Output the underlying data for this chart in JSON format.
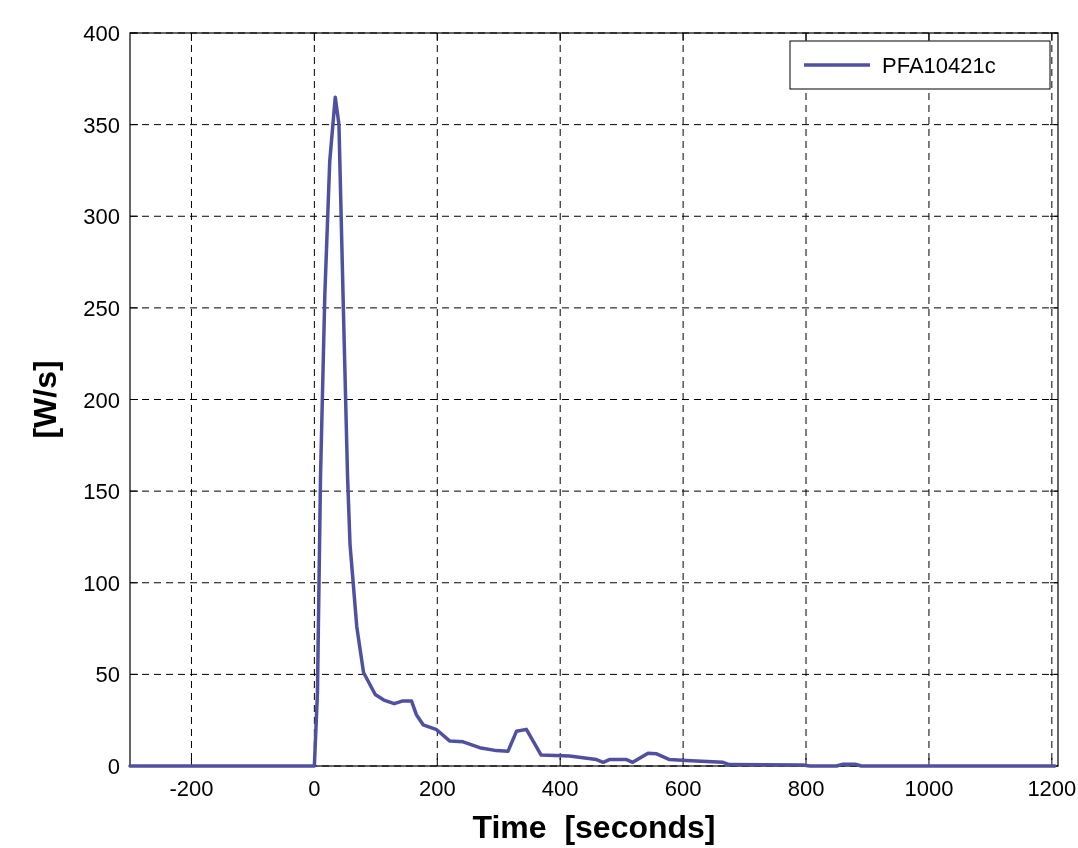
{
  "chart_data": {
    "type": "line",
    "xlabel": "Time  [seconds]",
    "ylabel": "[W/s]",
    "xlim": [
      -300,
      1210
    ],
    "xticks": [
      -200,
      0,
      200,
      400,
      600,
      800,
      1000,
      1200
    ],
    "ylim": [
      0,
      400
    ],
    "yticks": [
      0,
      50,
      100,
      150,
      200,
      250,
      300,
      350,
      400
    ],
    "grid": true,
    "legend": "top right",
    "line_style": "solid",
    "marker": "none",
    "series": [
      {
        "name": "PFA10421c",
        "color": "#5050a0",
        "x": [
          -300,
          -10,
          0,
          5,
          10,
          17,
          25,
          34,
          40,
          47,
          54,
          58,
          69,
          80,
          99,
          113,
          130,
          144,
          158,
          166,
          177,
          199,
          220,
          242,
          269,
          296,
          315,
          329,
          345,
          356,
          369,
          415,
          459,
          470,
          480,
          508,
          518,
          543,
          556,
          578,
          605,
          665,
          675,
          795,
          806,
          850,
          860,
          880,
          890,
          1000,
          1205
        ],
        "values": [
          0,
          0,
          0,
          40,
          158,
          257,
          330,
          365,
          350,
          252,
          158,
          121,
          76,
          51,
          39,
          36,
          34,
          35.5,
          35.5,
          28,
          22.5,
          19.8,
          13.7,
          13.2,
          10,
          8.4,
          8,
          19,
          20,
          13.6,
          6,
          5.5,
          3.5,
          2,
          3.5,
          3.5,
          2,
          7,
          6.7,
          3.5,
          3,
          2,
          0.8,
          0.6,
          0,
          0,
          1,
          1,
          0,
          0,
          0
        ]
      }
    ]
  }
}
